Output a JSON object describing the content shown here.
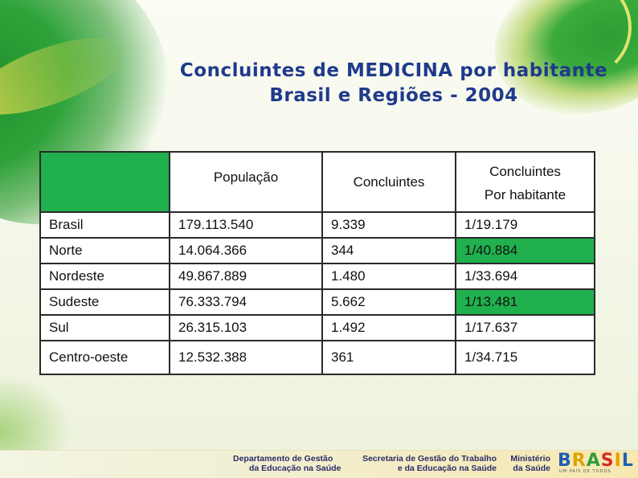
{
  "title": {
    "line1": "Concluintes de MEDICINA por habitante",
    "line2": "Brasil e Regiões - 2004"
  },
  "table": {
    "headers": {
      "populacao": "População",
      "concluintes": "Concluintes",
      "por_habitante_line1": "Concluintes",
      "por_habitante_line2": "Por habitante"
    },
    "rows": [
      {
        "region": "Brasil",
        "populacao": "179.113.540",
        "concluintes": "9.339",
        "por_habitante": "1/19.179"
      },
      {
        "region": "Norte",
        "populacao": "14.064.366",
        "concluintes": "344",
        "por_habitante": "1/40.884"
      },
      {
        "region": "Nordeste",
        "populacao": "49.867.889",
        "concluintes": "1.480",
        "por_habitante": "1/33.694"
      },
      {
        "region": "Sudeste",
        "populacao": "76.333.794",
        "concluintes": "5.662",
        "por_habitante": "1/13.481"
      },
      {
        "region": "Sul",
        "populacao": "26.315.103",
        "concluintes": "1.492",
        "por_habitante": "1/17.637"
      },
      {
        "region": "Centro-oeste",
        "populacao": "12.532.388",
        "concluintes": "361",
        "por_habitante": "1/34.715"
      }
    ],
    "highlight_color": "#20b04e"
  },
  "footer": {
    "dep_line1": "Departamento de Gestão",
    "dep_line2": "da Educação na Saúde",
    "sgt_line1": "Secretaria de Gestão do Trabalho",
    "sgt_line2": "e da Educação na Saúde",
    "min_line1": "Ministério",
    "min_line2": "da Saúde",
    "logo_letters": [
      "B",
      "R",
      "A",
      "S",
      "I",
      "L"
    ],
    "logo_colors": [
      "#1f5fb0",
      "#e0a000",
      "#2e9e3a",
      "#d42a2a",
      "#e0a000",
      "#1f5fb0"
    ],
    "logo_tagline": "UM PAÍS DE TODOS"
  }
}
